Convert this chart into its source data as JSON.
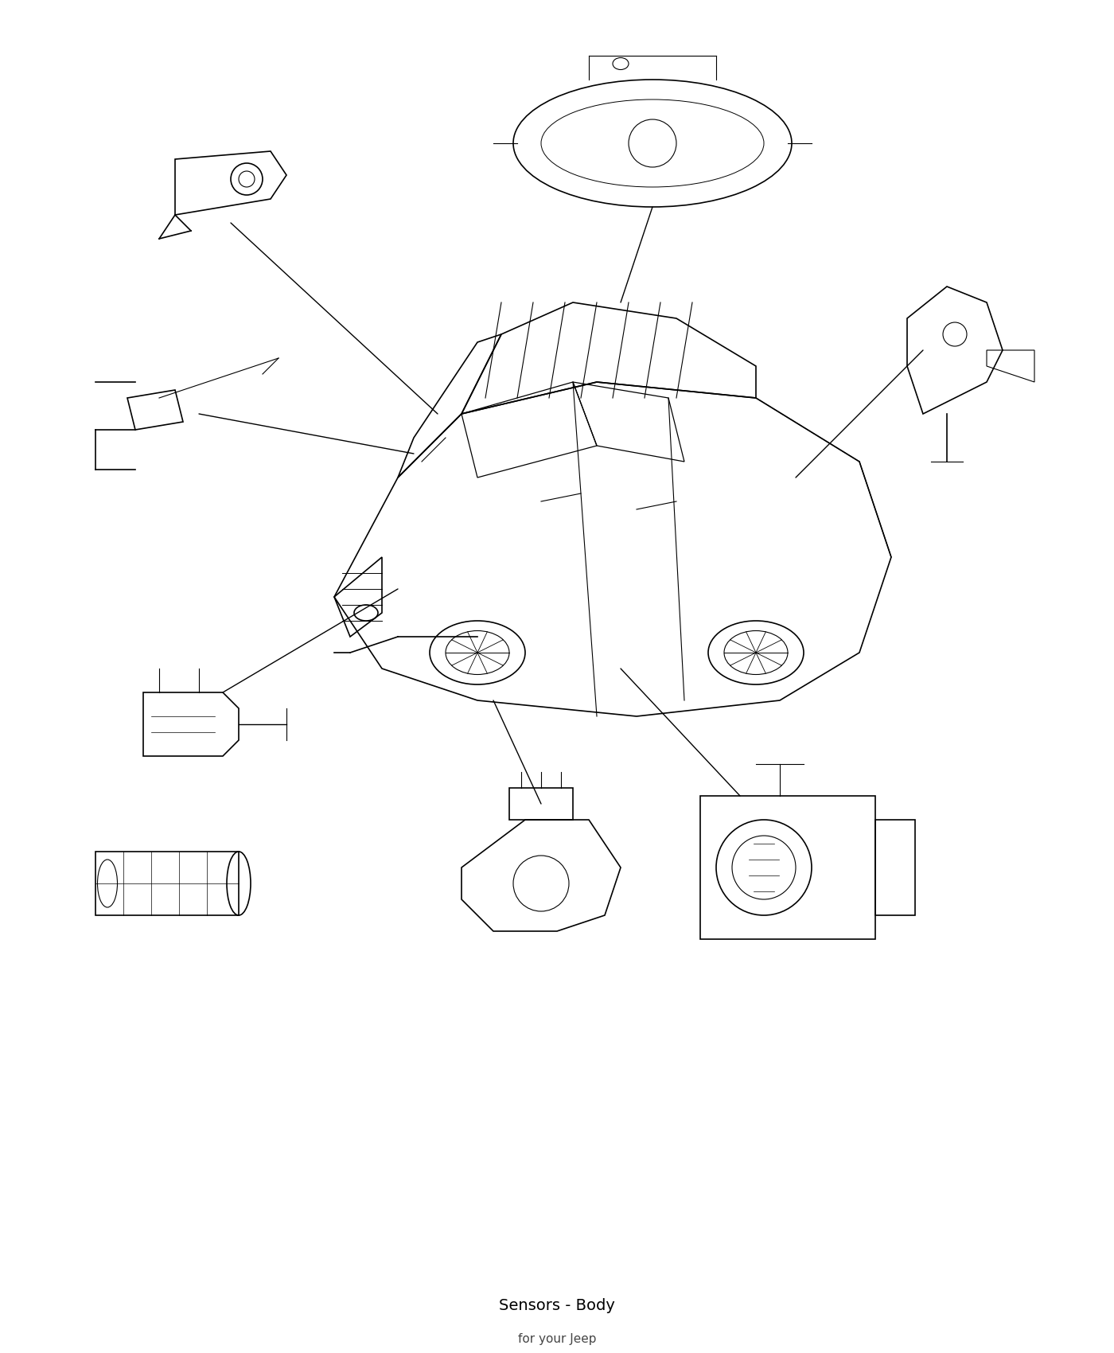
{
  "title": "Sensors Body - Jeep",
  "bg_color": "#ffffff",
  "line_color": "#000000",
  "fig_width": 14.0,
  "fig_height": 17.0,
  "dpi": 100
}
